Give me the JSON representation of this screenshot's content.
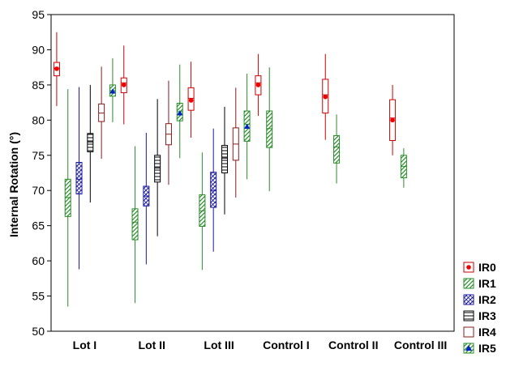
{
  "chart_data": {
    "type": "box",
    "ylabel": "Internal Rotation (°)",
    "ylim": [
      50,
      95
    ],
    "yticks": [
      50,
      55,
      60,
      65,
      70,
      75,
      80,
      85,
      90,
      95
    ],
    "categories": [
      "Lot I",
      "Lot II",
      "Lot III",
      "Control I",
      "Control II",
      "Control III"
    ],
    "legend_position": "right",
    "series": [
      {
        "name": "IR0",
        "color": "#cc0000",
        "pattern": "none",
        "marker": "circle",
        "boxes": [
          {
            "category": "Lot I",
            "whisker_low": 82.0,
            "q1": 86.3,
            "median": 87.4,
            "mean": 87.3,
            "q3": 88.2,
            "whisker_high": 92.5
          },
          {
            "category": "Lot II",
            "whisker_low": 79.4,
            "q1": 83.9,
            "median": 85.3,
            "mean": 85.0,
            "q3": 86.0,
            "whisker_high": 90.6
          },
          {
            "category": "Lot III",
            "whisker_low": 77.5,
            "q1": 81.4,
            "median": 83.1,
            "mean": 82.8,
            "q3": 84.6,
            "whisker_high": 88.3
          },
          {
            "category": "Control I",
            "whisker_low": 80.6,
            "q1": 83.6,
            "median": 85.3,
            "mean": 85.0,
            "q3": 86.3,
            "whisker_high": 89.4
          },
          {
            "category": "Control II",
            "whisker_low": 77.2,
            "q1": 81.0,
            "median": 83.6,
            "mean": 83.3,
            "q3": 85.8,
            "whisker_high": 89.4
          },
          {
            "category": "Control III",
            "whisker_low": 75.0,
            "q1": 77.1,
            "median": 80.3,
            "mean": 80.0,
            "q3": 82.9,
            "whisker_high": 85.0
          }
        ]
      },
      {
        "name": "IR1",
        "color": "#2a8c2a",
        "pattern": "diagonal",
        "marker": "none",
        "boxes": [
          {
            "category": "Lot I",
            "whisker_low": 53.5,
            "q1": 66.3,
            "median": 69.0,
            "q3": 71.6,
            "whisker_high": 84.4
          },
          {
            "category": "Lot II",
            "whisker_low": 54.0,
            "q1": 63.0,
            "median": 65.5,
            "q3": 67.4,
            "whisker_high": 76.3
          },
          {
            "category": "Lot III",
            "whisker_low": 58.7,
            "q1": 64.9,
            "median": 67.1,
            "q3": 69.4,
            "whisker_high": 75.4
          },
          {
            "category": "Control I",
            "whisker_low": 69.9,
            "q1": 76.1,
            "median": 78.8,
            "q3": 81.3,
            "whisker_high": 87.5
          },
          {
            "category": "Control II",
            "whisker_low": 71.0,
            "q1": 73.9,
            "median": 76.2,
            "q3": 77.8,
            "whisker_high": 80.8
          },
          {
            "category": "Control III",
            "whisker_low": 70.4,
            "q1": 71.8,
            "median": 73.4,
            "q3": 75.0,
            "whisker_high": 76.0
          }
        ]
      },
      {
        "name": "IR2",
        "color": "#1a1aa0",
        "pattern": "crosshatch",
        "marker": "none",
        "boxes": [
          {
            "category": "Lot I",
            "whisker_low": 58.8,
            "q1": 69.5,
            "median": 71.6,
            "q3": 74.0,
            "whisker_high": 84.7
          },
          {
            "category": "Lot II",
            "whisker_low": 59.5,
            "q1": 67.8,
            "median": 69.2,
            "q3": 70.6,
            "whisker_high": 78.2
          },
          {
            "category": "Lot III",
            "whisker_low": 61.3,
            "q1": 67.6,
            "median": 70.0,
            "q3": 72.6,
            "whisker_high": 78.8
          }
        ]
      },
      {
        "name": "IR3",
        "color": "#000000",
        "pattern": "horizontal",
        "marker": "none",
        "boxes": [
          {
            "category": "Lot I",
            "whisker_low": 68.3,
            "q1": 75.5,
            "median": 76.9,
            "q3": 78.1,
            "whisker_high": 85.0
          },
          {
            "category": "Lot II",
            "whisker_low": 63.5,
            "q1": 71.2,
            "median": 73.2,
            "q3": 75.0,
            "whisker_high": 83.0
          },
          {
            "category": "Lot III",
            "whisker_low": 66.6,
            "q1": 72.5,
            "median": 74.6,
            "q3": 76.4,
            "whisker_high": 81.9
          }
        ]
      },
      {
        "name": "IR4",
        "color": "#8b1a1a",
        "pattern": "none",
        "marker": "none",
        "boxes": [
          {
            "category": "Lot I",
            "whisker_low": 74.5,
            "q1": 79.8,
            "median": 81.0,
            "q3": 82.3,
            "whisker_high": 87.6
          },
          {
            "category": "Lot II",
            "whisker_low": 70.8,
            "q1": 76.5,
            "median": 78.0,
            "q3": 79.5,
            "whisker_high": 85.6
          },
          {
            "category": "Lot III",
            "whisker_low": 69.0,
            "q1": 74.3,
            "median": 76.6,
            "q3": 78.9,
            "whisker_high": 84.6
          }
        ]
      },
      {
        "name": "IR5",
        "color": "#2a8c2a",
        "pattern": "diagonal",
        "marker": "triangle",
        "marker_color": "#0022cc",
        "boxes": [
          {
            "category": "Lot I",
            "whisker_low": 79.7,
            "q1": 83.4,
            "median": 84.2,
            "mean": 84.1,
            "q3": 85.0,
            "whisker_high": 88.8
          },
          {
            "category": "Lot II",
            "whisker_low": 74.6,
            "q1": 79.9,
            "median": 81.2,
            "mean": 81.0,
            "q3": 82.4,
            "whisker_high": 87.9
          },
          {
            "category": "Lot III",
            "whisker_low": 71.6,
            "q1": 77.0,
            "median": 79.4,
            "mean": 79.1,
            "q3": 81.3,
            "whisker_high": 86.6
          }
        ]
      }
    ]
  }
}
